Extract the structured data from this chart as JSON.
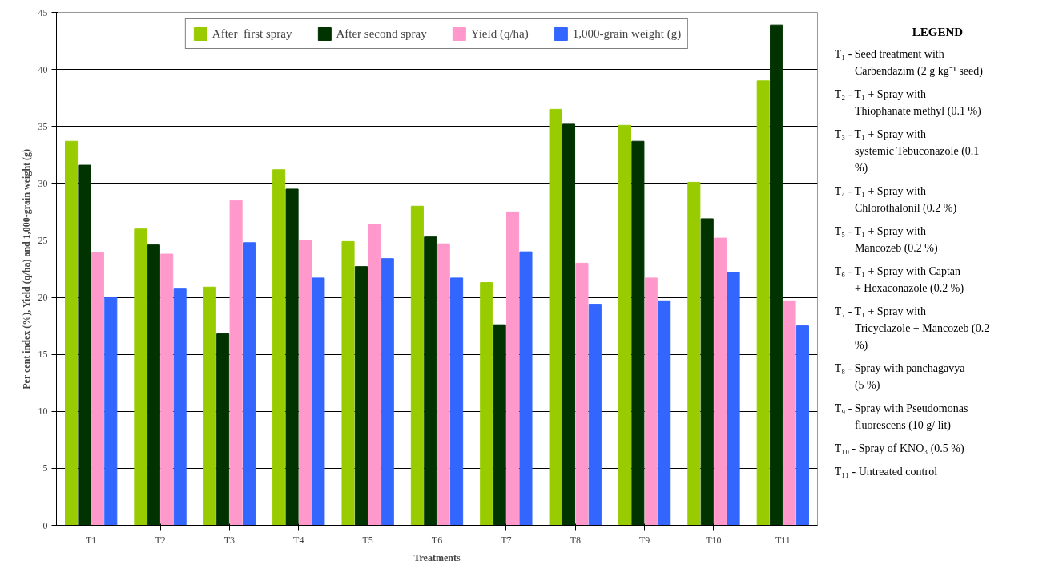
{
  "chart_data": {
    "type": "bar",
    "xlabel": "Treatments",
    "ylabel": "Per cent index (%), Yield (q/ha) and 1,000-grain weight (g)",
    "categories": [
      "T1",
      "T2",
      "T3",
      "T4",
      "T5",
      "T6",
      "T7",
      "T8",
      "T9",
      "T10",
      "T11"
    ],
    "series": [
      {
        "name": "After  first spray",
        "color": "#99cc00",
        "values": [
          33.7,
          26.0,
          20.9,
          31.2,
          24.9,
          28.0,
          21.3,
          36.5,
          35.1,
          30.1,
          39.0
        ]
      },
      {
        "name": "After second spray",
        "color": "#003300",
        "values": [
          31.6,
          24.6,
          16.8,
          29.5,
          22.7,
          25.3,
          17.6,
          35.2,
          33.7,
          26.9,
          43.9
        ]
      },
      {
        "name": "Yield (q/ha)",
        "color": "#ff99cc",
        "values": [
          23.9,
          23.8,
          28.5,
          25.0,
          26.4,
          24.7,
          27.5,
          23.0,
          21.7,
          25.2,
          19.7
        ]
      },
      {
        "name": "1,000-grain weight (g)",
        "color": "#3366ff",
        "values": [
          20.0,
          20.8,
          24.8,
          21.7,
          23.4,
          21.7,
          24.0,
          19.4,
          19.7,
          22.2,
          17.5
        ]
      }
    ],
    "ylim": [
      0,
      45
    ],
    "yticks": [
      0,
      5,
      10,
      15,
      20,
      25,
      30,
      35,
      40,
      45
    ],
    "grid": "y",
    "legend": "top",
    "annotations": [
      "LEGEND",
      "T₁ - Seed treatment with Carbendazim (2 g kg⁻¹ seed)",
      "T₂ - T₁ + Spray with Thiophanate methyl (0.1 %)",
      "T₃ - T₁ + Spray with systemic Tebuconazole (0.1 %)",
      "T₄ - T₁ + Spray with Chlorothalonil (0.2 %)",
      "T₅ - T₁ + Spray with Mancozeb (0.2 %)",
      "T₆ - T₁ + Spray with Captan + Hexaconazole (0.2 %)",
      "T₇ - T₁ + Spray with Tricyclazole + Mancozeb (0.2 %)",
      "T₈ - Spray with panchagavya (5 %)",
      "T₉ - Spray with Pseudomonas fluorescens (10 g/ lit)",
      "T₁₀ - Spray of KNO₃ (0.5 %)",
      "T₁₁ - Untreated control"
    ]
  }
}
